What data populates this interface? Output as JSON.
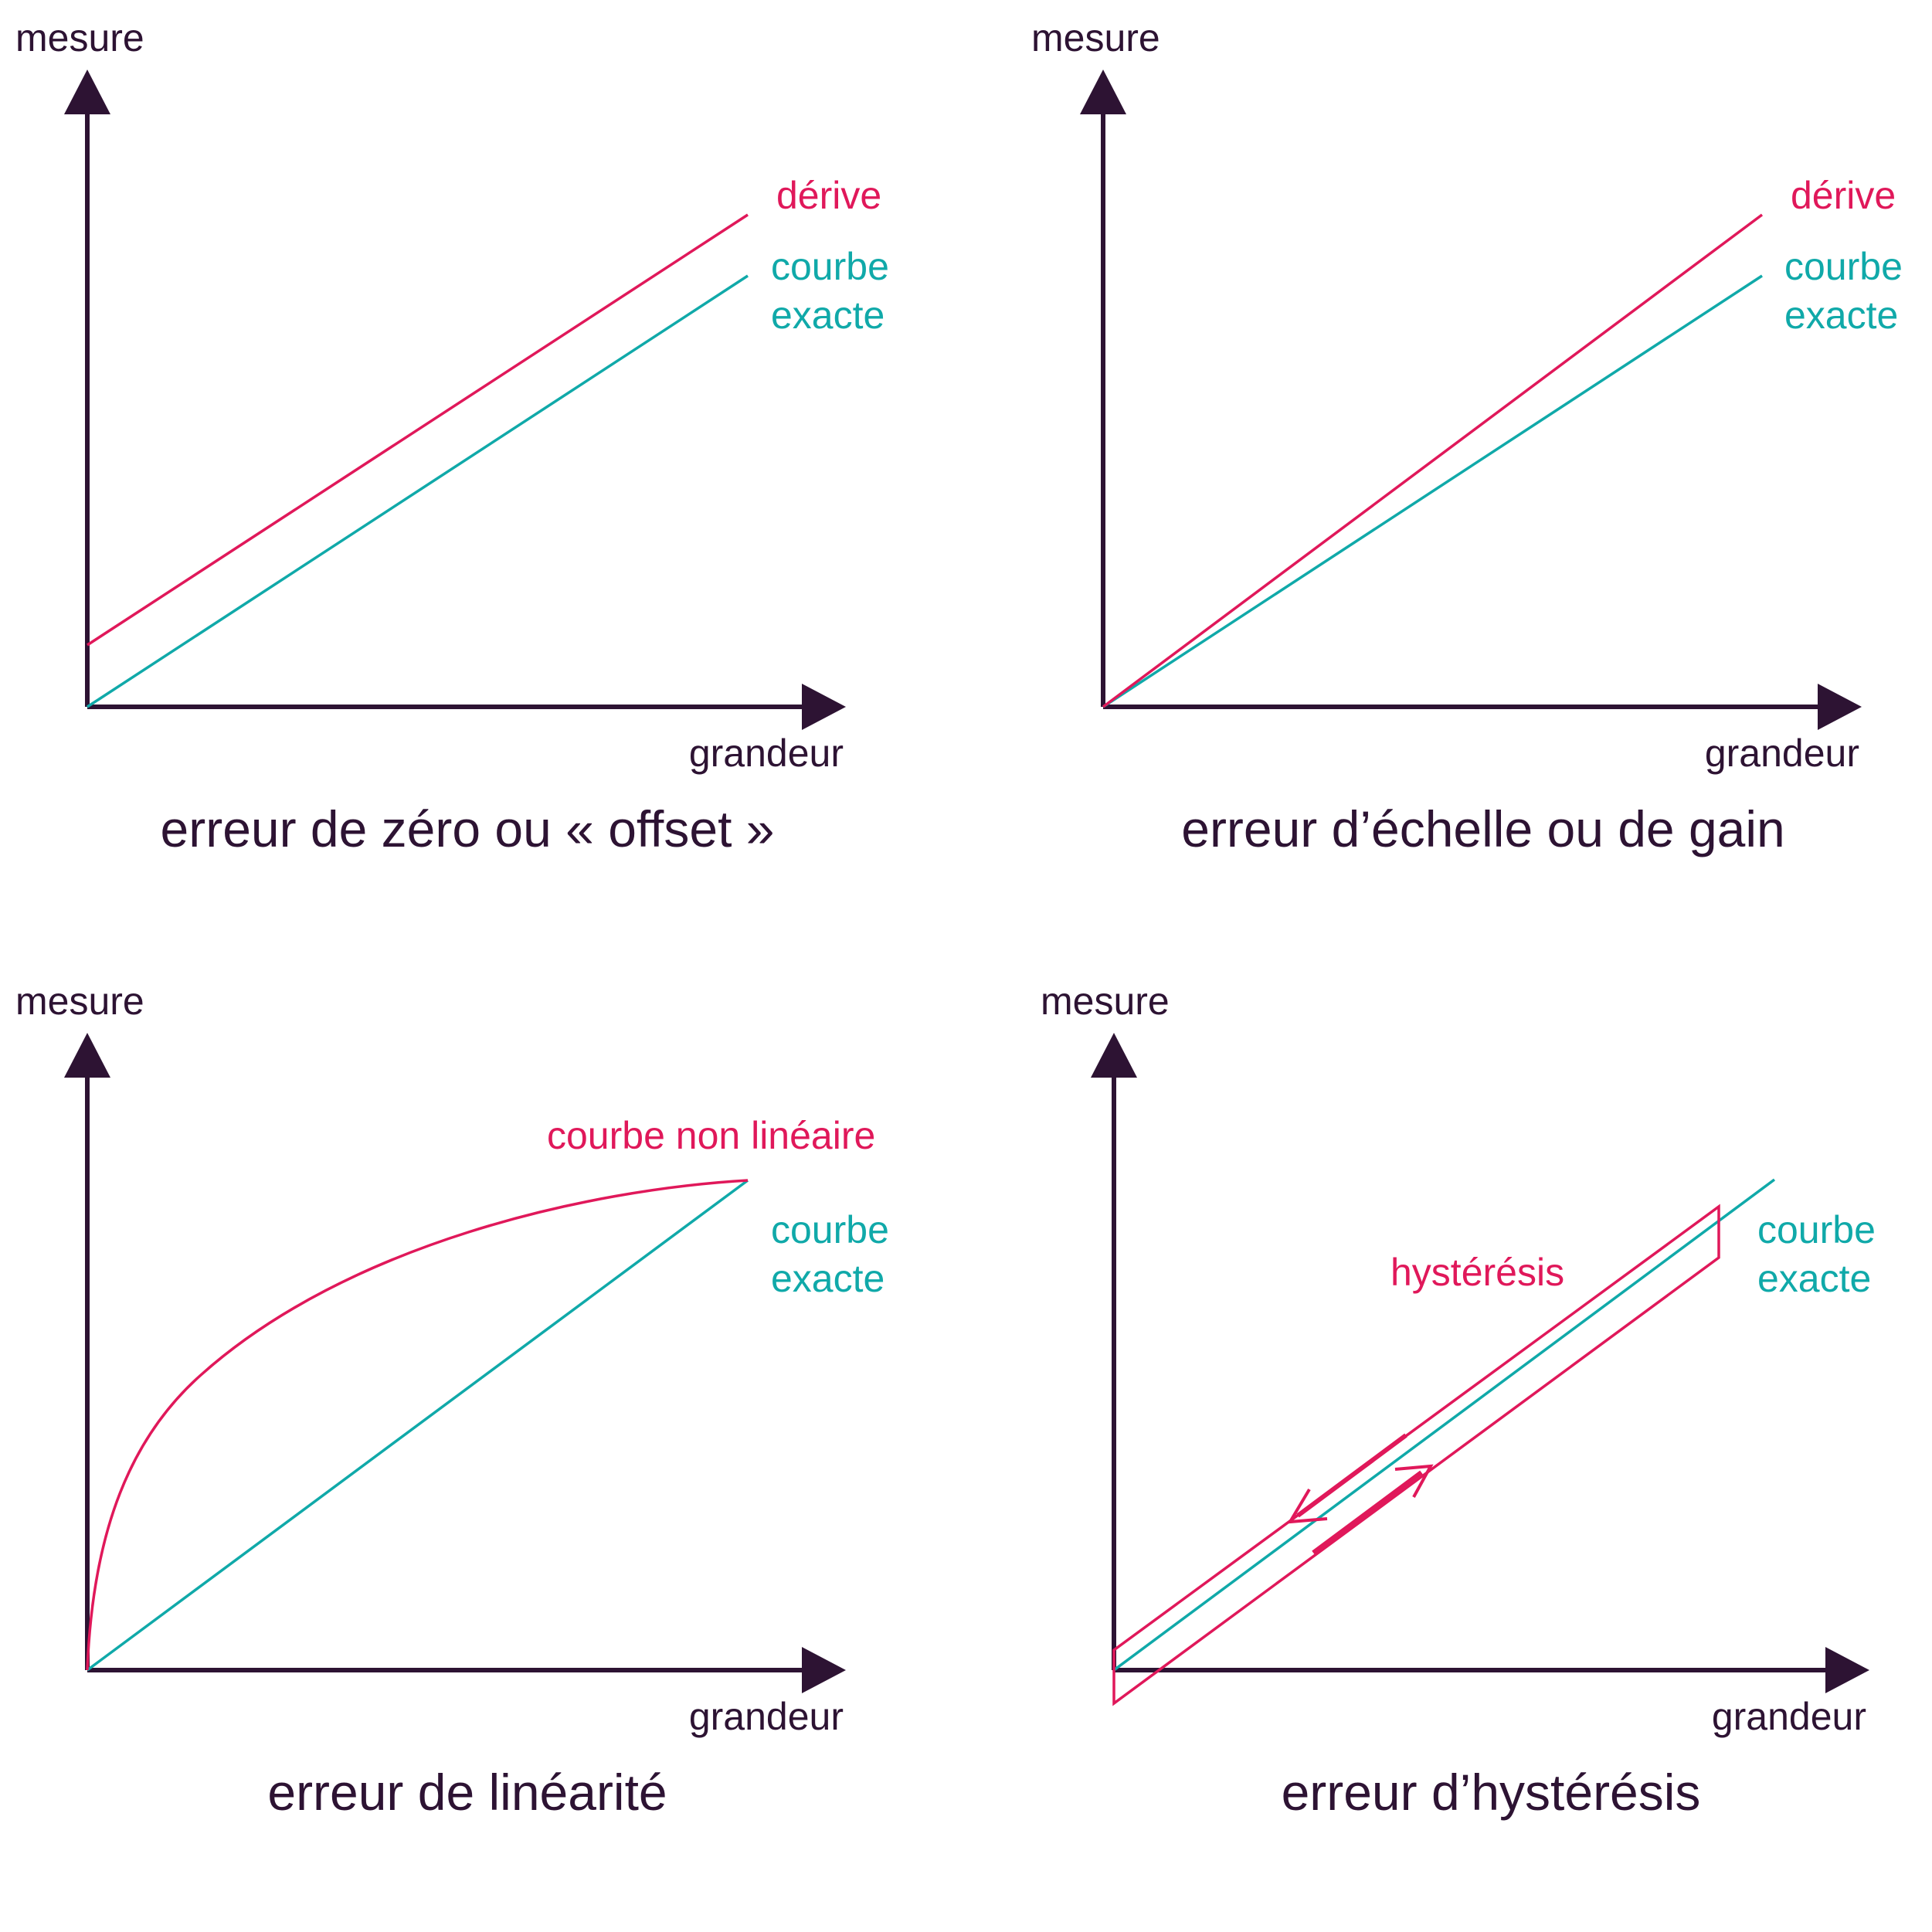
{
  "colors": {
    "axis": "#2d1333",
    "error_curve": "#e0185a",
    "exact_curve": "#10a9a9"
  },
  "panels": [
    {
      "y_label": "mesure",
      "x_label": "grandeur",
      "caption": "erreur de zéro ou « offset »",
      "error_label": [
        "dérive"
      ],
      "exact_label": [
        "courbe",
        "exacte"
      ]
    },
    {
      "y_label": "mesure",
      "x_label": "grandeur",
      "caption": "erreur d’échelle ou de gain",
      "error_label": [
        "dérive"
      ],
      "exact_label": [
        "courbe",
        "exacte"
      ]
    },
    {
      "y_label": "mesure",
      "x_label": "grandeur",
      "caption": "erreur de linéarité",
      "error_label": [
        "courbe non linéaire"
      ],
      "exact_label": [
        "courbe",
        "exacte"
      ]
    },
    {
      "y_label": "mesure",
      "x_label": "grandeur",
      "caption": "erreur d’hystérésis",
      "error_label": [
        "hystérésis"
      ],
      "exact_label": [
        "courbe",
        "exacte"
      ]
    }
  ]
}
